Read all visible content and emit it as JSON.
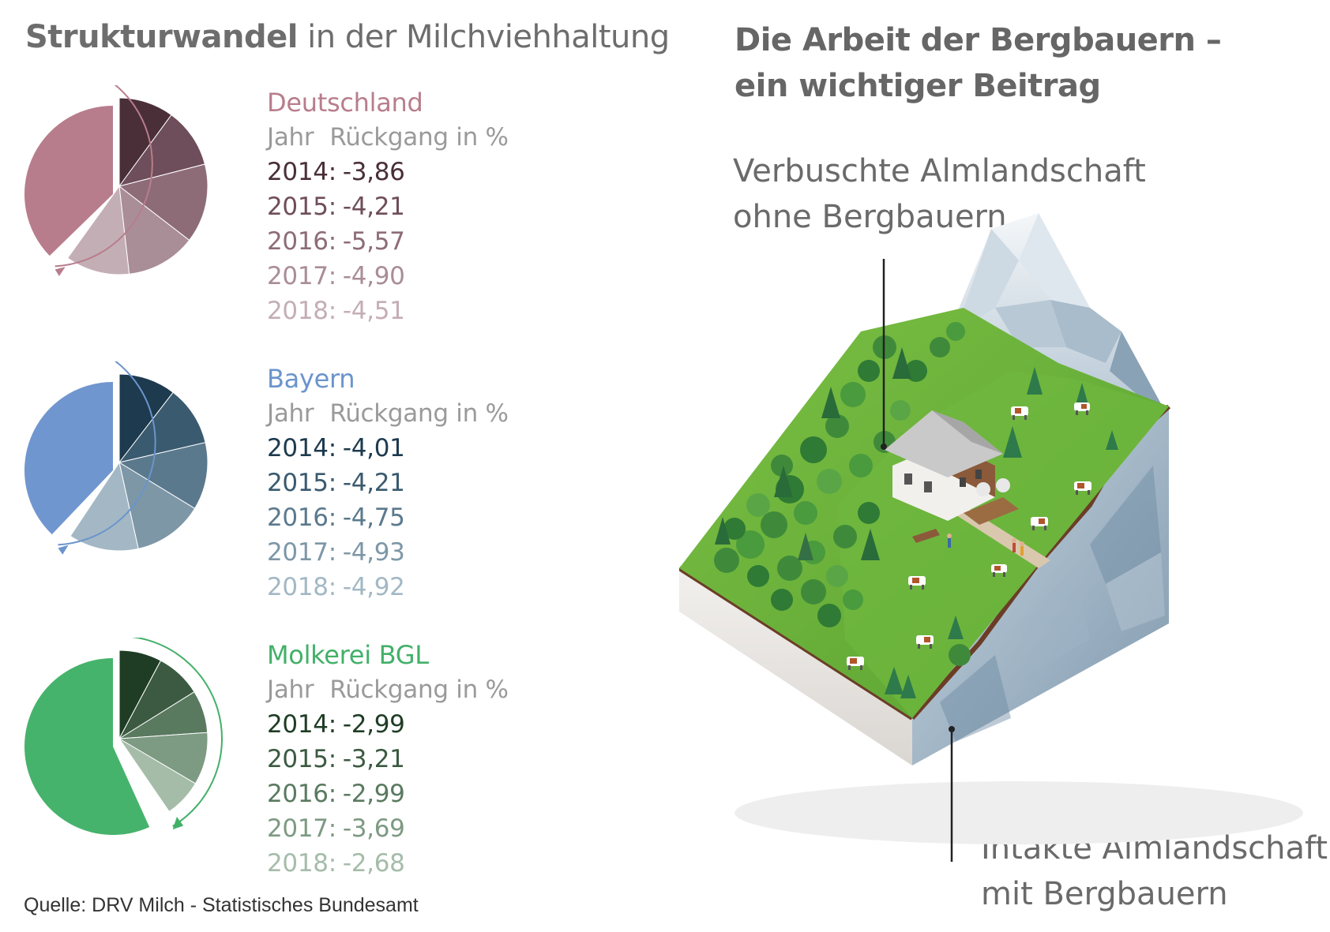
{
  "left_title": {
    "bold": "Strukturwandel",
    "rest": " in der Milchviehhaltung"
  },
  "right_title": {
    "line1": "Die Arbeit der Bergbauern –",
    "line2": "ein wichtiger Beitrag"
  },
  "labels": {
    "top_line1": "Verbuschte Almlandschaft",
    "top_line2": "ohne Bergbauern",
    "bottom_line1": "Intakte Almlandschaft",
    "bottom_line2": "mit Bergbauern"
  },
  "source": "Quelle: DRV Milch - Statistisches Bundesamt",
  "chart_data": [
    {
      "type": "pie",
      "title": "Deutschland",
      "header_year": "Jahr",
      "header_value": "Rückgang in %",
      "base_color": "#b87d8c",
      "text_color": "#b87d8c",
      "slice_colors": [
        "#4a2f38",
        "#6e4e5a",
        "#8d6c78",
        "#a98d97",
        "#c4aeb5"
      ],
      "row_colors": [
        "#4a2f38",
        "#6e4e5a",
        "#8d6c78",
        "#a98d97",
        "#c4aeb5"
      ],
      "categories": [
        "2014",
        "2015",
        "2016",
        "2017",
        "2018"
      ],
      "values": [
        -3.86,
        -4.21,
        -5.57,
        -4.9,
        -4.51
      ],
      "labels": [
        "-3,86",
        "-4,21",
        "-5,57",
        "-4,90",
        "-4,51"
      ]
    },
    {
      "type": "pie",
      "title": "Bayern",
      "header_year": "Jahr",
      "header_value": "Rückgang in %",
      "base_color": "#7096cf",
      "text_color": "#6b94cc",
      "slice_colors": [
        "#1d3a4e",
        "#3a5a6f",
        "#5b798d",
        "#7d97a7",
        "#a3b8c4"
      ],
      "row_colors": [
        "#1d3a4e",
        "#3a5a6f",
        "#5b798d",
        "#7d97a7",
        "#a3b8c4"
      ],
      "categories": [
        "2014",
        "2015",
        "2016",
        "2017",
        "2018"
      ],
      "values": [
        -4.01,
        -4.21,
        -4.75,
        -4.93,
        -4.92
      ],
      "labels": [
        "-4,01",
        "-4,21",
        "-4,75",
        "-4,93",
        "-4,92"
      ]
    },
    {
      "type": "pie",
      "title": "Molkerei BGL",
      "header_year": "Jahr",
      "header_value": "Rückgang in %",
      "base_color": "#46b36c",
      "text_color": "#43b069",
      "slice_colors": [
        "#1f3d25",
        "#3b5a41",
        "#5a7a60",
        "#7d9a82",
        "#a5bca9"
      ],
      "row_colors": [
        "#1f3d25",
        "#3b5a41",
        "#5a7a60",
        "#7d9a82",
        "#a5bca9"
      ],
      "categories": [
        "2014",
        "2015",
        "2016",
        "2017",
        "2018"
      ],
      "values": [
        -2.99,
        -3.21,
        -2.99,
        -3.69,
        -2.68
      ],
      "labels": [
        "-2,99",
        "-3,21",
        "-2,99",
        "-3,69",
        "-2,68"
      ]
    }
  ]
}
